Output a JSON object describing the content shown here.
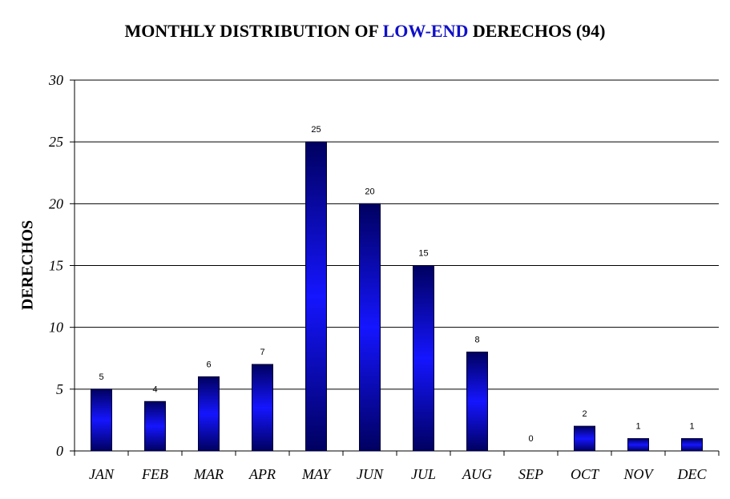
{
  "title": {
    "prefix": "MONTHLY DISTRIBUTION OF ",
    "highlight": "LOW-END",
    "suffix": " DERECHOS (94)",
    "highlight_color": "#1010c8"
  },
  "chart_data": {
    "type": "bar",
    "title": "MONTHLY DISTRIBUTION OF LOW-END DERECHOS (94)",
    "xlabel": "",
    "ylabel": "DERECHOS",
    "categories": [
      "JAN",
      "FEB",
      "MAR",
      "APR",
      "MAY",
      "JUN",
      "JUL",
      "AUG",
      "SEP",
      "OCT",
      "NOV",
      "DEC"
    ],
    "values": [
      5,
      4,
      6,
      7,
      25,
      20,
      15,
      8,
      0,
      2,
      1,
      1
    ],
    "ylim": [
      0,
      30
    ],
    "yticks": [
      0,
      5,
      10,
      15,
      20,
      25,
      30
    ],
    "grid": "horizontal",
    "legend": "none",
    "bar_color_center": "#1515ff",
    "bar_color_edge": "#000060"
  }
}
